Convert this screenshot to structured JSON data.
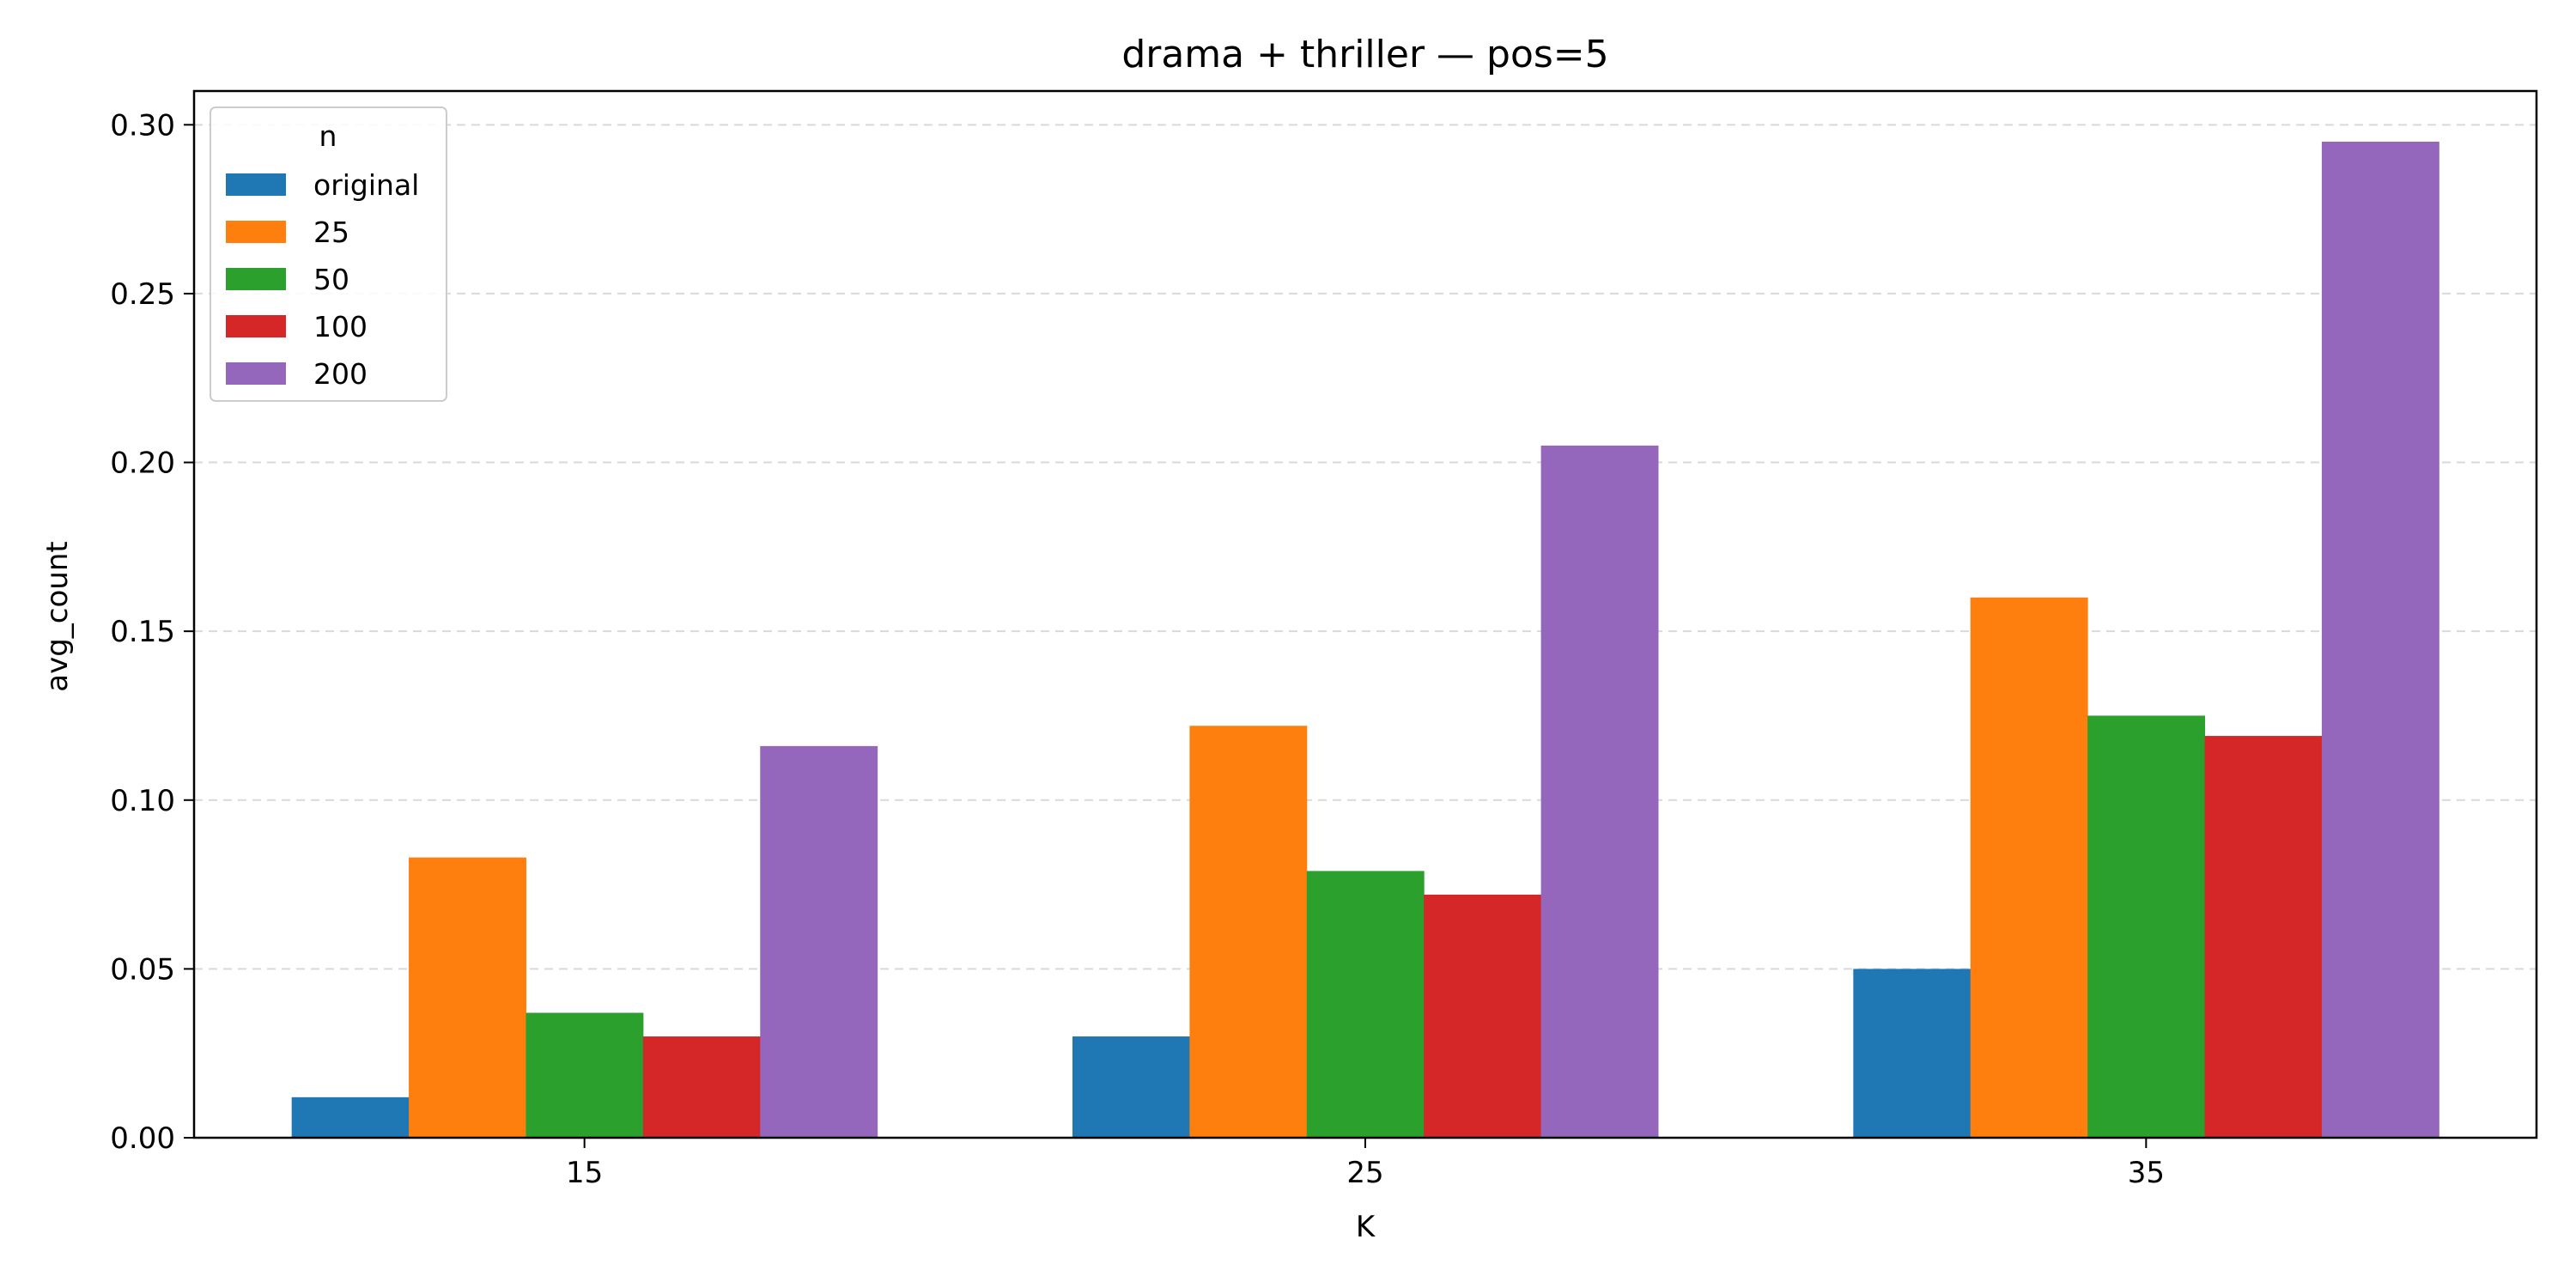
{
  "chart_data": {
    "type": "bar",
    "title": "drama + thriller — pos=5",
    "xlabel": "K",
    "ylabel": "avg_count",
    "categories": [
      "15",
      "25",
      "35"
    ],
    "ylim": [
      0,
      0.31
    ],
    "yticks": [
      "0.00",
      "0.05",
      "0.10",
      "0.15",
      "0.20",
      "0.25",
      "0.30"
    ],
    "grid": "y-dashed",
    "legend": {
      "title": "n",
      "placement": "top-left"
    },
    "series": [
      {
        "name": "original",
        "color": "#1f77b4",
        "values": [
          0.012,
          0.03,
          0.05
        ]
      },
      {
        "name": "25",
        "color": "#ff7f0e",
        "values": [
          0.083,
          0.122,
          0.16
        ]
      },
      {
        "name": "50",
        "color": "#2ca02c",
        "values": [
          0.037,
          0.079,
          0.125
        ]
      },
      {
        "name": "100",
        "color": "#d62728",
        "values": [
          0.03,
          0.072,
          0.119
        ]
      },
      {
        "name": "200",
        "color": "#9467bd",
        "values": [
          0.116,
          0.205,
          0.295
        ]
      }
    ]
  }
}
